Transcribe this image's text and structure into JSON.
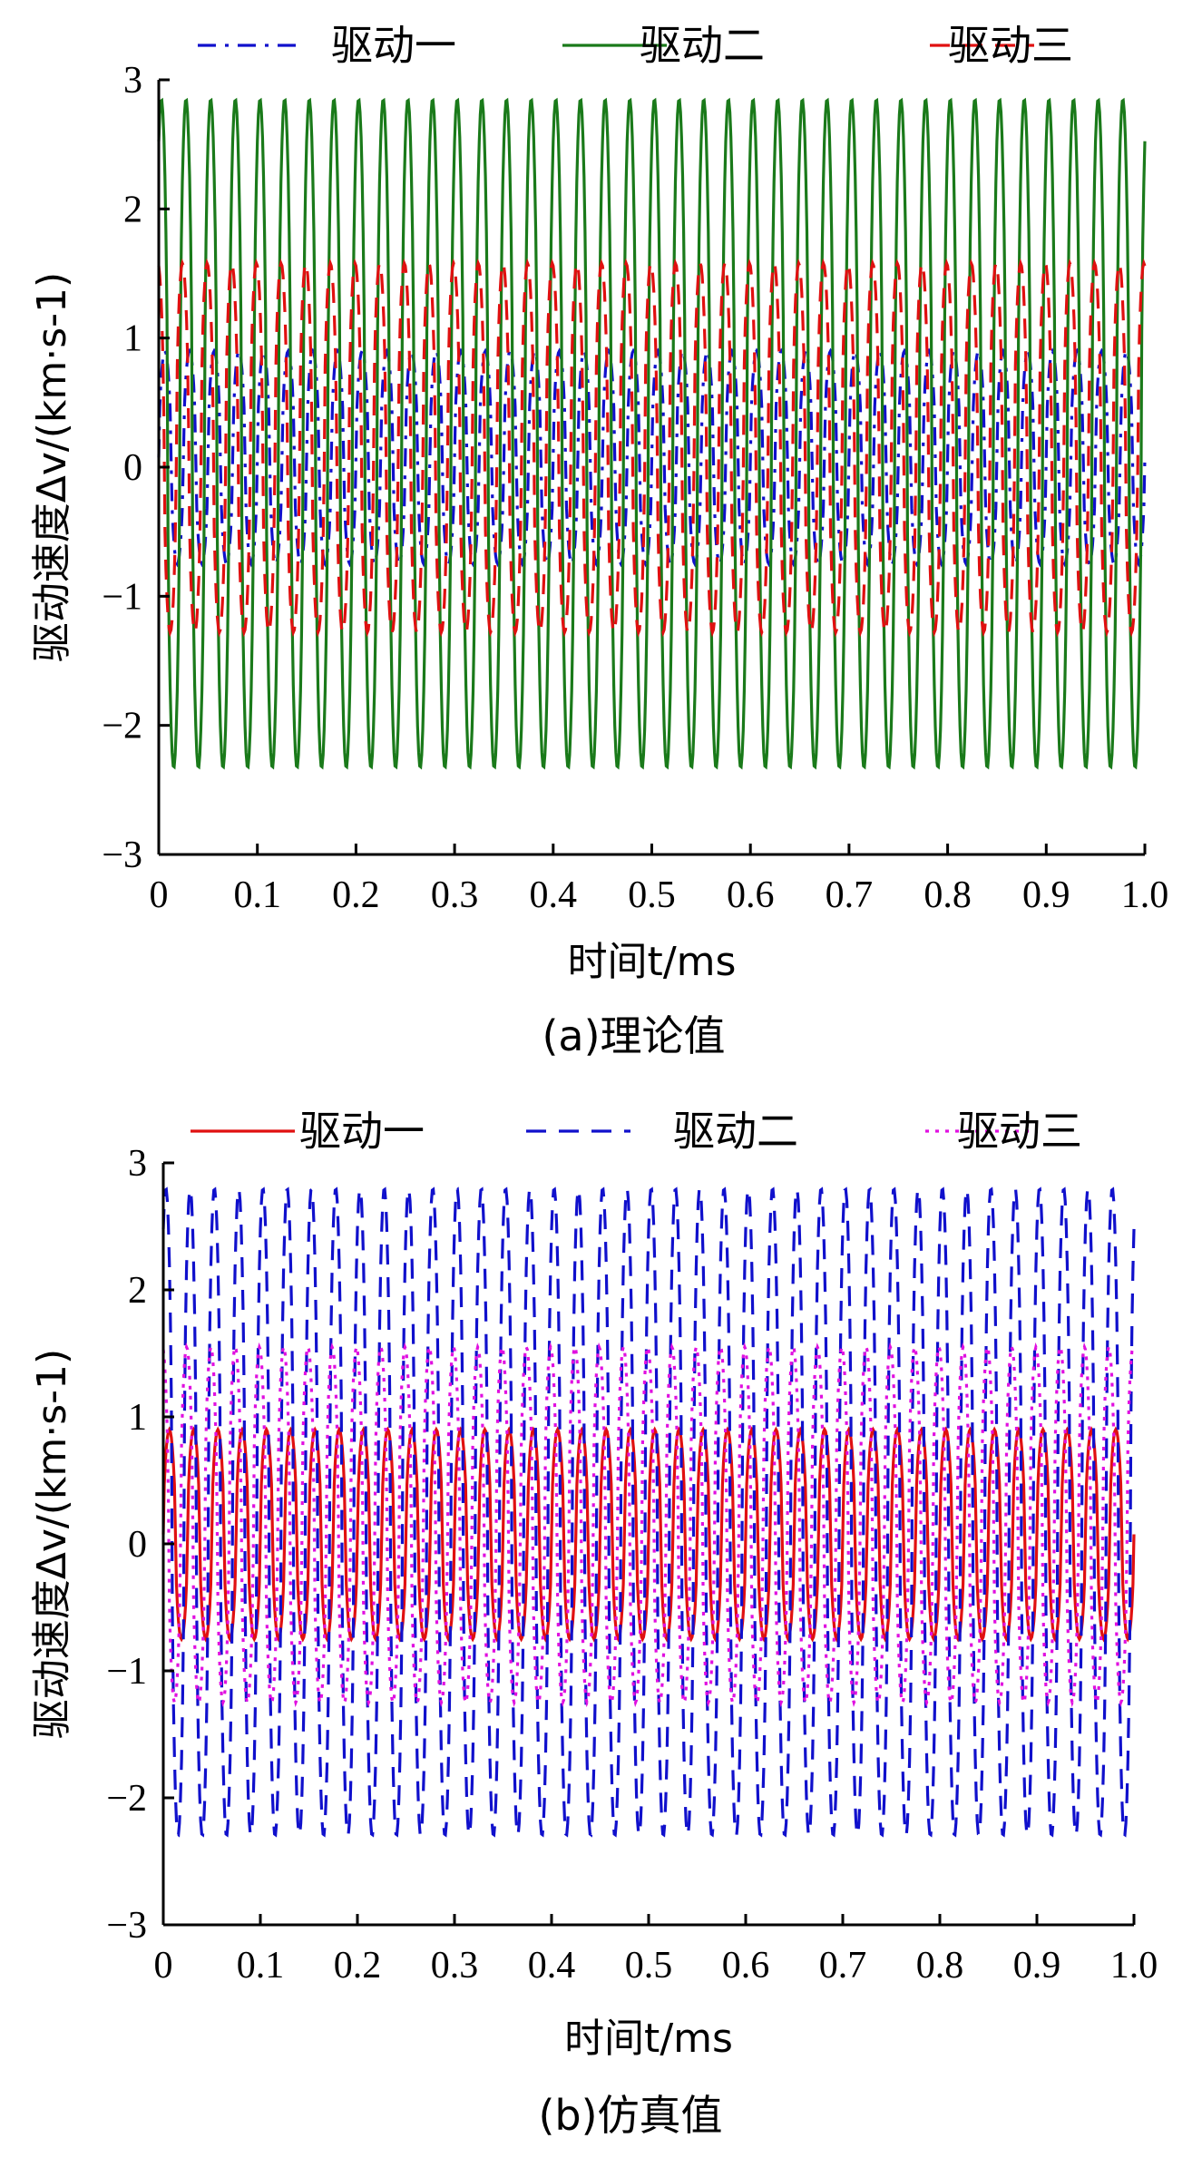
{
  "chart_data": [
    {
      "type": "line",
      "caption": "(a)理论值",
      "xlabel": "时间t/ms",
      "ylabel": "驱动速度Δv/(km·s-1)",
      "xlim": [
        0,
        1.0
      ],
      "ylim": [
        -3,
        3
      ],
      "x_ticks": [
        "0",
        "0.1",
        "0.2",
        "0.3",
        "0.4",
        "0.5",
        "0.6",
        "0.7",
        "0.8",
        "0.9",
        "1.0"
      ],
      "y_ticks": [
        "3",
        "2",
        "1",
        "0",
        "−1",
        "−2",
        "−3"
      ],
      "legend_position": "top",
      "periods_in_range": 40,
      "series": [
        {
          "name": "驱动一",
          "color": "#1010cc",
          "style": "dashdot",
          "max": 0.9,
          "min": -0.75
        },
        {
          "name": "驱动二",
          "color": "#1a7a1a",
          "style": "solid",
          "max": 2.85,
          "min": -2.33
        },
        {
          "name": "驱动三",
          "color": "#e01010",
          "style": "dashed",
          "max": 1.58,
          "min": -1.28
        }
      ]
    },
    {
      "type": "line",
      "caption": "(b)仿真值",
      "xlabel": "时间t/ms",
      "ylabel": "驱动速度Δv/(km·s-1)",
      "xlim": [
        0,
        1.0
      ],
      "ylim": [
        -3,
        3
      ],
      "x_ticks": [
        "0",
        "0.1",
        "0.2",
        "0.3",
        "0.4",
        "0.5",
        "0.6",
        "0.7",
        "0.8",
        "0.9",
        "1.0"
      ],
      "y_ticks": [
        "3",
        "2",
        "1",
        "0",
        "−1",
        "−2",
        "−3"
      ],
      "legend_position": "top",
      "periods_in_range": 40,
      "series": [
        {
          "name": "驱动一",
          "color": "#e01010",
          "style": "solid",
          "max": 0.9,
          "min": -0.75
        },
        {
          "name": "驱动二",
          "color": "#1010cc",
          "style": "dashed",
          "max": 2.8,
          "min": -2.3
        },
        {
          "name": "驱动三",
          "color": "#e010e0",
          "style": "dotted",
          "max": 1.55,
          "min": -1.25
        }
      ]
    }
  ]
}
